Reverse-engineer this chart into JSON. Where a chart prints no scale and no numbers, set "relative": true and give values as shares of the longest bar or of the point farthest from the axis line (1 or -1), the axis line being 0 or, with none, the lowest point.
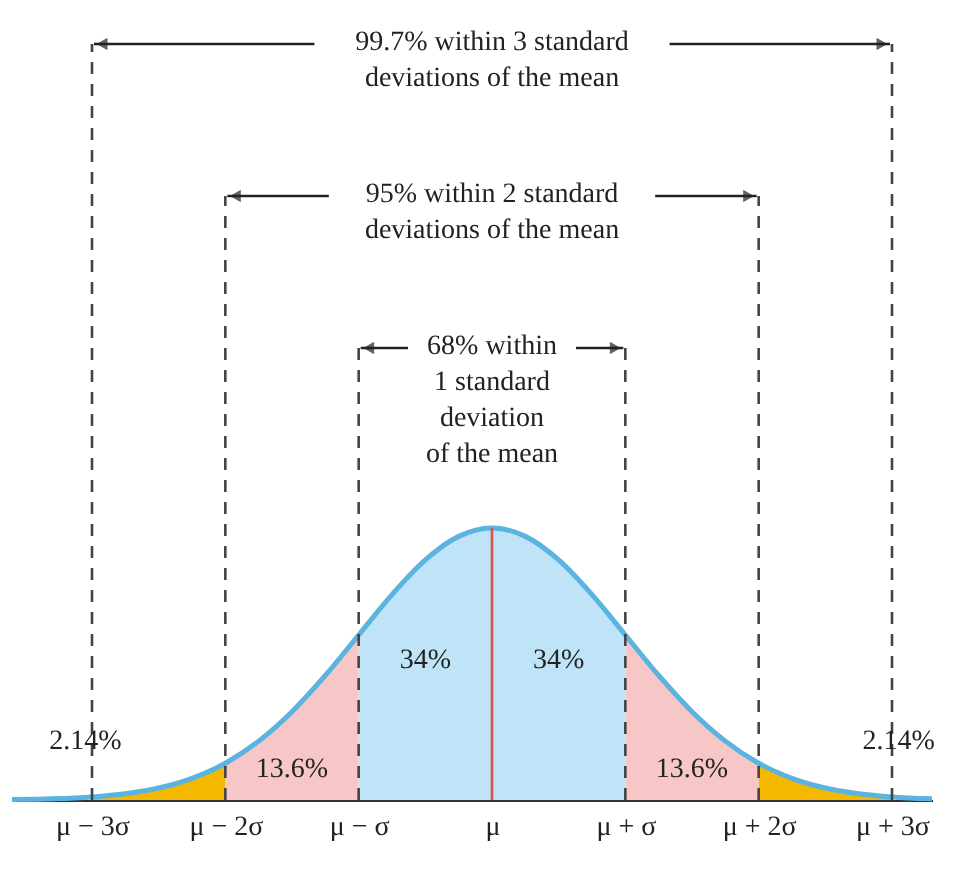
{
  "chart_data": {
    "type": "area",
    "relative": true,
    "tick_labels": "x",
    "xlim": [
      -3.6,
      3.3
    ],
    "xticks": [
      {
        "value": -3,
        "label": "μ − 3σ"
      },
      {
        "value": -2,
        "label": "μ − 2σ"
      },
      {
        "value": -1,
        "label": "μ − σ"
      },
      {
        "value": 0,
        "label": "μ"
      },
      {
        "value": 1,
        "label": "μ + σ"
      },
      {
        "value": 2,
        "label": "μ + 2σ"
      },
      {
        "value": 3,
        "label": "μ + 3σ"
      }
    ],
    "series": [
      {
        "color": "#f5b800",
        "x": [
          -3,
          -2.75,
          -2.5,
          -2.25,
          -2
        ],
        "values": [
          0.0111,
          0.0228,
          0.0439,
          0.0796,
          0.1353
        ]
      },
      {
        "color": "#f7c6c6",
        "x": [
          -2,
          -1.75,
          -1.5,
          -1.25,
          -1
        ],
        "values": [
          0.1353,
          0.2165,
          0.3247,
          0.4578,
          0.6065
        ]
      },
      {
        "color": "#bfe3f7",
        "x": [
          -1,
          -0.75,
          -0.5,
          -0.25,
          0
        ],
        "values": [
          0.6065,
          0.7548,
          0.8825,
          0.9692,
          1
        ]
      },
      {
        "color": "#bfe3f7",
        "x": [
          0,
          0.25,
          0.5,
          0.75,
          1
        ],
        "values": [
          1,
          0.9692,
          0.8825,
          0.7548,
          0.6065
        ]
      },
      {
        "color": "#f7c6c6",
        "x": [
          1,
          1.25,
          1.5,
          1.75,
          2
        ],
        "values": [
          0.6065,
          0.4578,
          0.3247,
          0.2165,
          0.1353
        ]
      },
      {
        "color": "#f5b800",
        "x": [
          2,
          2.25,
          2.5,
          2.75,
          3
        ],
        "values": [
          0.1353,
          0.0796,
          0.0439,
          0.0228,
          0.0111
        ]
      },
      {
        "type": "line",
        "color": "#5bb3e0",
        "x": [
          -3.6,
          -3.3,
          -3,
          -2.75,
          -2.5,
          -2.25,
          -2,
          -1.75,
          -1.5,
          -1.25,
          -1,
          -0.75,
          -0.5,
          -0.25,
          0,
          0.25,
          0.5,
          0.75,
          1,
          1.25,
          1.5,
          1.75,
          2,
          2.25,
          2.5,
          2.75,
          3,
          3.3
        ],
        "values": [
          0.0015,
          0.0043,
          0.0111,
          0.0228,
          0.0439,
          0.0796,
          0.1353,
          0.2165,
          0.3247,
          0.4578,
          0.6065,
          0.7548,
          0.8825,
          0.9692,
          1,
          0.9692,
          0.8825,
          0.7548,
          0.6065,
          0.4578,
          0.3247,
          0.2165,
          0.1353,
          0.0796,
          0.0439,
          0.0228,
          0.0111,
          0.0043
        ]
      }
    ],
    "ref_lines": [
      {
        "axis": "x",
        "value": -3,
        "color": "#444444",
        "line_style": "dashed"
      },
      {
        "axis": "x",
        "value": -2,
        "color": "#444444",
        "line_style": "dashed"
      },
      {
        "axis": "x",
        "value": -1,
        "color": "#444444",
        "line_style": "dashed"
      },
      {
        "axis": "x",
        "value": 0,
        "color": "#d9534f",
        "line_style": "solid"
      },
      {
        "axis": "x",
        "value": 1,
        "color": "#444444",
        "line_style": "dashed"
      },
      {
        "axis": "x",
        "value": 2,
        "color": "#444444",
        "line_style": "dashed"
      },
      {
        "axis": "x",
        "value": 3,
        "color": "#444444",
        "line_style": "dashed"
      }
    ],
    "annotations": [
      "99.7% within 3 standard\ndeviations of the mean",
      "95% within 2 standard\ndeviations of the mean",
      "68% within\n1 standard\ndeviation\nof the mean",
      "2.14%",
      "13.6%",
      "34%",
      "34%",
      "13.6%",
      "2.14%"
    ]
  }
}
